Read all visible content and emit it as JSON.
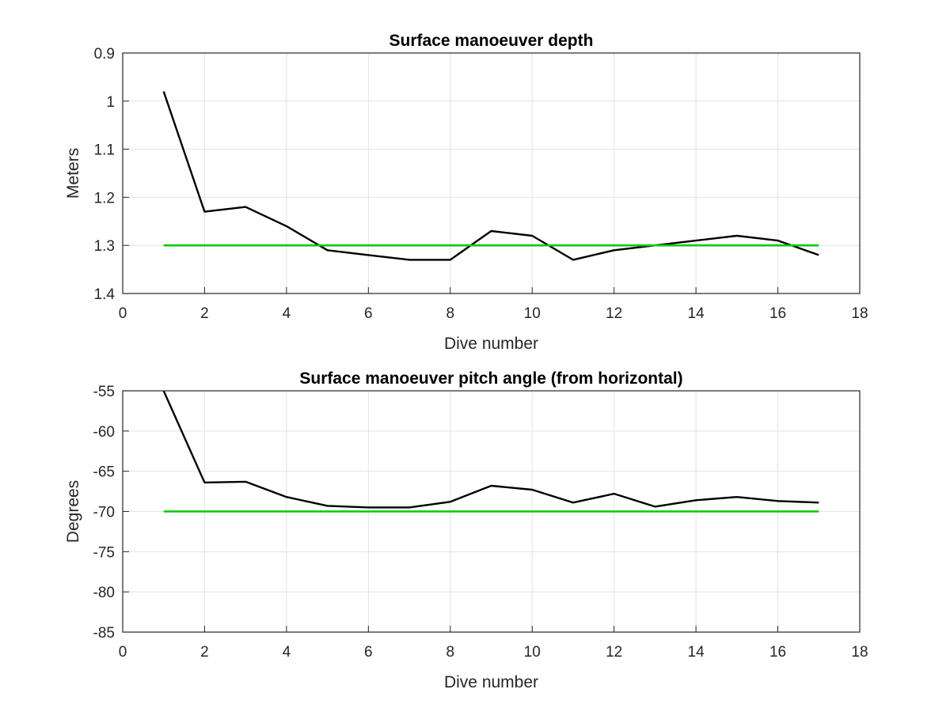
{
  "chart_data": [
    {
      "type": "line",
      "title": "Surface manoeuver depth",
      "xlabel": "Dive number",
      "ylabel": "Meters",
      "xlim": [
        0,
        18
      ],
      "ylim": [
        0.9,
        1.4
      ],
      "y_reversed": true,
      "xticks": [
        "0",
        "2",
        "4",
        "6",
        "8",
        "10",
        "12",
        "14",
        "16",
        "18"
      ],
      "yticks": [
        "0.9",
        "1",
        "1.1",
        "1.2",
        "1.3",
        "1.4"
      ],
      "grid": true,
      "series": [
        {
          "color": "#000000",
          "x": [
            1,
            2,
            3,
            4,
            5,
            6,
            7,
            8,
            9,
            10,
            11,
            12,
            13,
            14,
            15,
            16,
            17
          ],
          "values": [
            0.98,
            1.23,
            1.22,
            1.26,
            1.31,
            1.32,
            1.33,
            1.33,
            1.27,
            1.28,
            1.33,
            1.31,
            1.3,
            1.29,
            1.28,
            1.29,
            1.32
          ]
        },
        {
          "color": "#00cc00",
          "x": [
            1,
            17
          ],
          "values": [
            1.3,
            1.3
          ]
        }
      ]
    },
    {
      "type": "line",
      "title": "Surface manoeuver pitch angle (from horizontal)",
      "xlabel": "Dive number",
      "ylabel": "Degrees",
      "xlim": [
        0,
        18
      ],
      "ylim": [
        -85,
        -55
      ],
      "y_reversed": false,
      "xticks": [
        "0",
        "2",
        "4",
        "6",
        "8",
        "10",
        "12",
        "14",
        "16",
        "18"
      ],
      "yticks": [
        "-55",
        "-60",
        "-65",
        "-70",
        "-75",
        "-80",
        "-85"
      ],
      "grid": true,
      "series": [
        {
          "color": "#000000",
          "x": [
            1,
            2,
            3,
            4,
            5,
            6,
            7,
            8,
            9,
            10,
            11,
            12,
            13,
            14,
            15,
            16,
            17
          ],
          "values": [
            -55,
            -66.4,
            -66.3,
            -68.2,
            -69.3,
            -69.5,
            -69.5,
            -68.8,
            -66.8,
            -67.3,
            -68.9,
            -67.8,
            -69.4,
            -68.6,
            -68.2,
            -68.7,
            -68.9
          ]
        },
        {
          "color": "#00cc00",
          "x": [
            1,
            17
          ],
          "values": [
            -70,
            -70
          ]
        }
      ]
    }
  ]
}
